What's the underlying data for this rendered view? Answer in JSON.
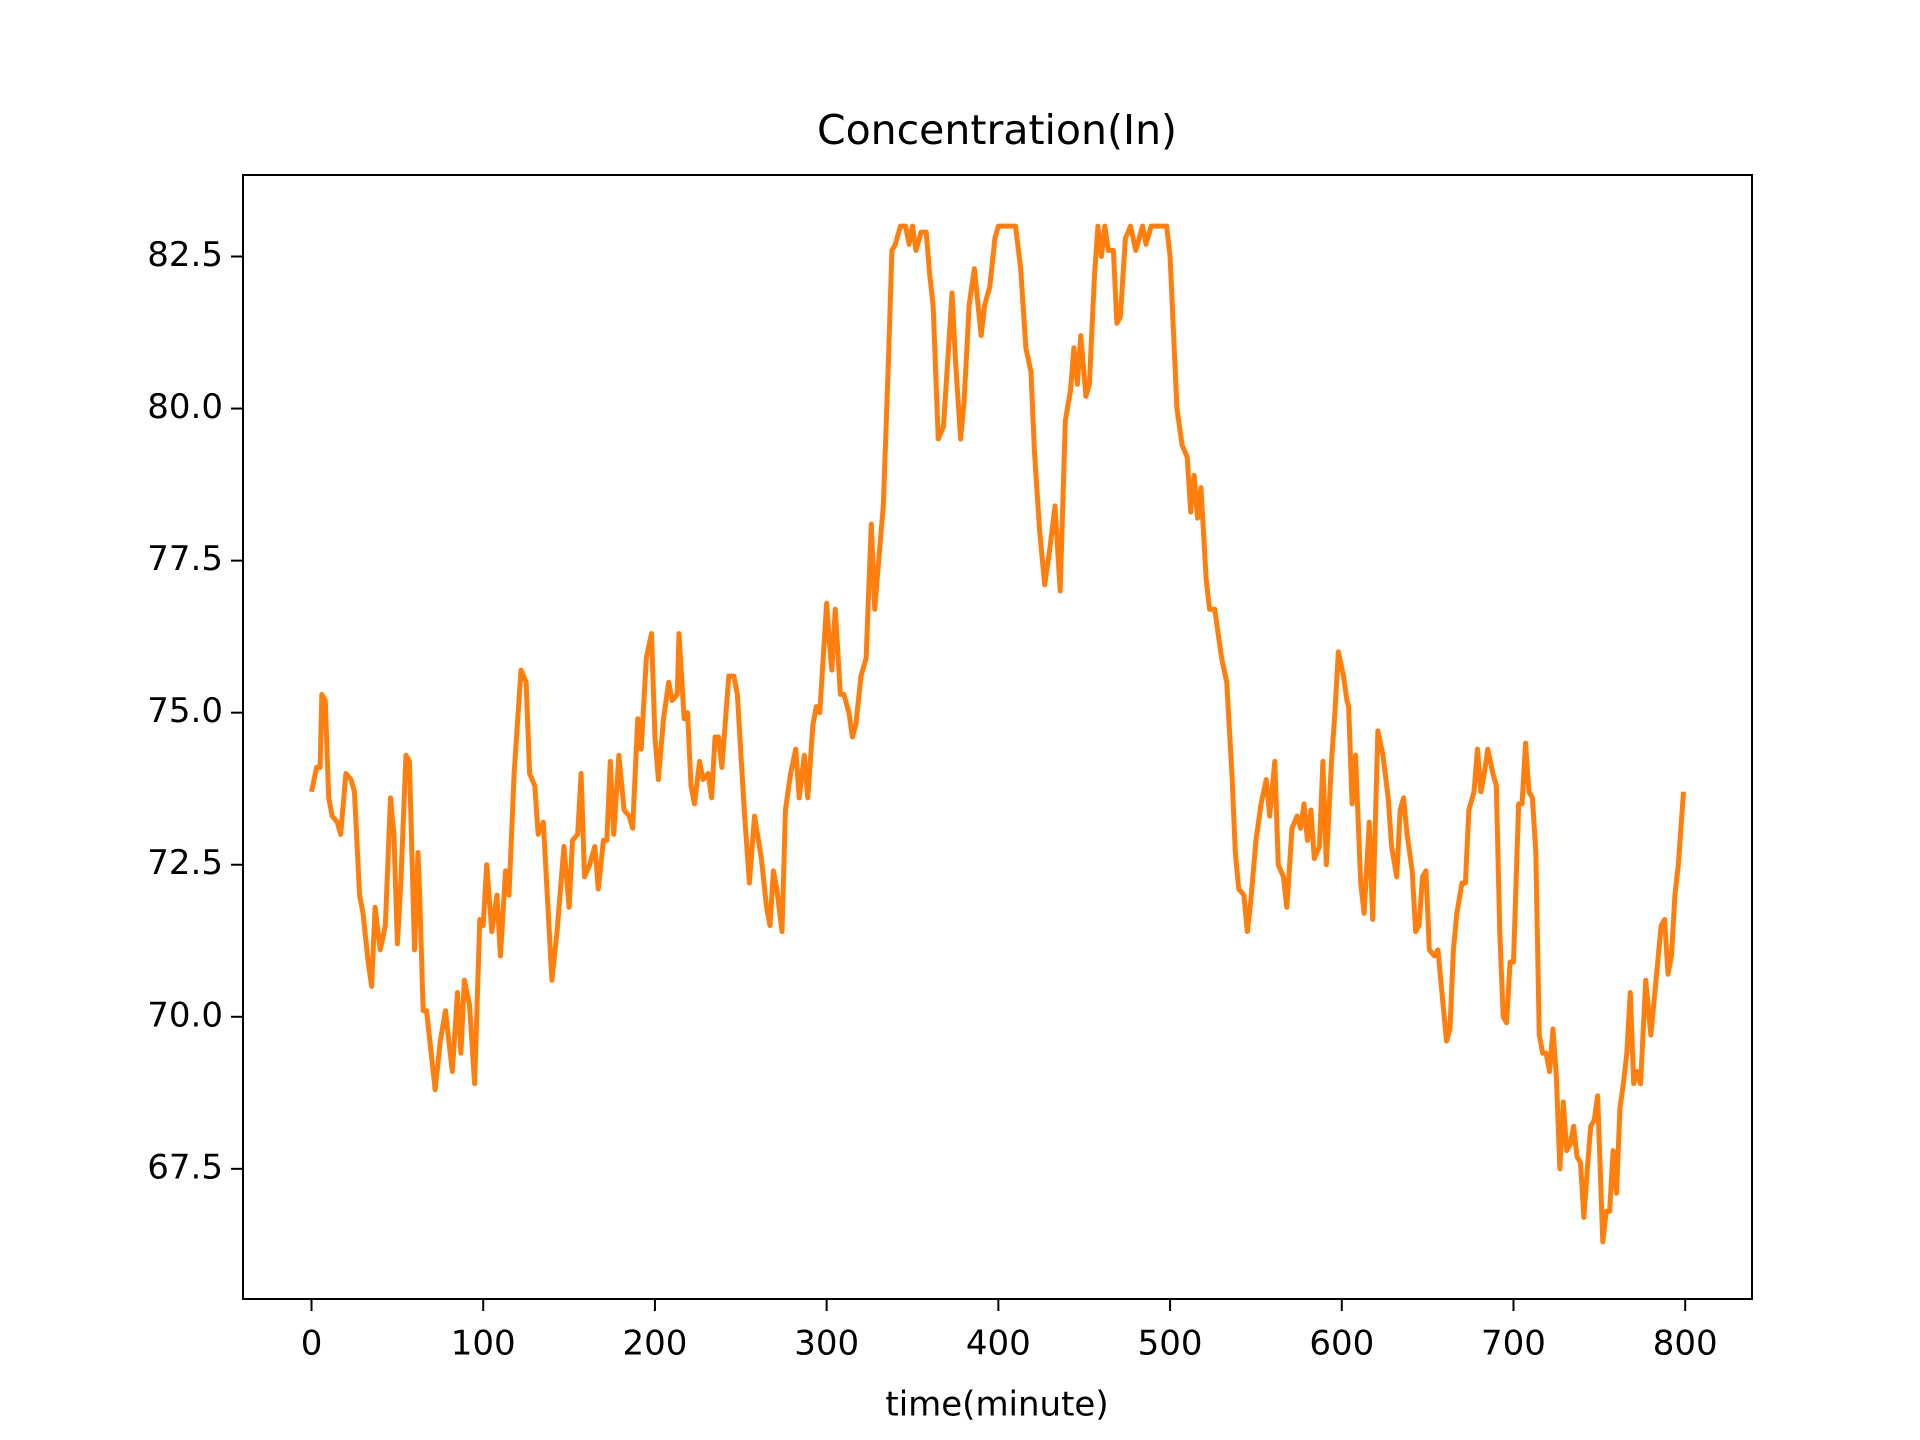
{
  "chart_data": {
    "type": "line",
    "title": "Concentration(In)",
    "x_label": "time(minute)",
    "color": "#ff7f0e",
    "x": [
      0,
      3,
      5,
      6,
      8,
      10,
      12,
      15,
      17,
      20,
      23,
      25,
      28,
      30,
      33,
      35,
      37,
      40,
      43,
      46,
      48,
      50,
      52,
      55,
      57,
      60,
      62,
      63,
      65,
      67,
      72,
      75,
      78,
      80,
      82,
      85,
      87,
      89,
      92,
      95,
      98,
      100,
      102,
      105,
      108,
      110,
      113,
      115,
      118,
      122,
      125,
      127,
      130,
      132,
      135,
      140,
      143,
      147,
      150,
      152,
      155,
      157,
      159,
      162,
      165,
      167,
      170,
      172,
      174,
      176,
      179,
      182,
      185,
      187,
      190,
      192,
      195,
      198,
      200,
      202,
      205,
      208,
      210,
      213,
      214,
      217,
      219,
      221,
      223,
      226,
      228,
      231,
      233,
      235,
      237,
      239,
      243,
      246,
      248,
      252,
      255,
      258,
      262,
      265,
      267,
      269,
      271,
      274,
      276,
      279,
      282,
      284,
      287,
      289,
      292,
      294,
      296,
      300,
      302,
      303,
      305,
      308,
      310,
      313,
      315,
      317,
      320,
      323,
      326,
      328,
      330,
      333,
      336,
      338,
      340,
      343,
      346,
      348,
      350,
      352,
      355,
      358,
      360,
      362,
      365,
      368,
      371,
      373,
      375,
      378,
      380,
      383,
      386,
      390,
      392,
      395,
      398,
      400,
      403,
      405,
      410,
      413,
      416,
      419,
      421,
      424,
      427,
      430,
      433,
      436,
      439,
      442,
      444,
      446,
      448,
      451,
      453,
      456,
      458,
      460,
      462,
      464,
      467,
      469,
      471,
      474,
      477,
      480,
      482,
      484,
      486,
      489,
      492,
      498,
      500,
      504,
      507,
      510,
      512,
      514,
      516,
      518,
      521,
      523,
      526,
      530,
      533,
      536,
      538,
      540,
      543,
      545,
      547,
      550,
      553,
      556,
      558,
      561,
      563,
      566,
      568,
      571,
      574,
      576,
      578,
      580,
      582,
      584,
      587,
      589,
      591,
      594,
      596,
      598,
      601,
      603,
      604,
      606,
      608,
      611,
      613,
      616,
      618,
      621,
      624,
      627,
      629,
      632,
      634,
      636,
      638,
      641,
      643,
      645,
      647,
      649,
      651,
      654,
      656,
      659,
      661,
      663,
      665,
      667,
      670,
      672,
      674,
      677,
      679,
      681,
      683,
      685,
      688,
      690,
      692,
      694,
      696,
      698,
      700,
      703,
      705,
      707,
      709,
      711,
      713,
      715,
      717,
      719,
      721,
      723,
      725,
      727,
      729,
      731,
      733,
      735,
      737,
      739,
      741,
      743,
      745,
      747,
      749,
      752,
      754,
      756,
      758,
      760,
      762,
      764,
      766,
      768,
      770,
      772,
      774,
      777,
      780,
      782,
      784,
      786,
      788,
      790,
      792,
      794,
      796,
      799
    ],
    "values": [
      73.7,
      74.1,
      74.1,
      75.3,
      75.2,
      73.6,
      73.3,
      73.2,
      73.0,
      74.0,
      73.9,
      73.7,
      72.0,
      71.7,
      70.9,
      70.5,
      71.8,
      71.1,
      71.5,
      73.6,
      73.0,
      71.2,
      72.2,
      74.3,
      74.2,
      71.1,
      72.7,
      72.0,
      70.1,
      70.1,
      68.8,
      69.6,
      70.1,
      69.6,
      69.1,
      70.4,
      69.4,
      70.6,
      70.2,
      68.9,
      71.6,
      71.5,
      72.5,
      71.4,
      72.0,
      71.0,
      72.4,
      72.0,
      74.0,
      75.7,
      75.5,
      74.0,
      73.8,
      73.0,
      73.2,
      70.6,
      71.4,
      72.8,
      71.8,
      72.9,
      73.0,
      74.0,
      72.3,
      72.5,
      72.8,
      72.1,
      72.9,
      72.9,
      74.2,
      73.0,
      74.3,
      73.4,
      73.3,
      73.1,
      74.9,
      74.4,
      75.9,
      76.3,
      74.6,
      73.9,
      74.9,
      75.5,
      75.2,
      75.3,
      76.3,
      74.9,
      75.0,
      73.8,
      73.5,
      74.2,
      73.9,
      74.0,
      73.6,
      74.6,
      74.6,
      74.1,
      75.6,
      75.6,
      75.3,
      73.4,
      72.2,
      73.3,
      72.6,
      71.8,
      71.5,
      72.4,
      72.1,
      71.4,
      73.4,
      74.0,
      74.4,
      73.6,
      74.3,
      73.6,
      74.8,
      75.1,
      75.0,
      76.8,
      76.0,
      75.7,
      76.7,
      75.3,
      75.3,
      75.0,
      74.6,
      74.8,
      75.6,
      75.9,
      78.1,
      76.7,
      77.4,
      78.4,
      80.8,
      82.6,
      82.7,
      83.0,
      83.0,
      82.7,
      83.0,
      82.6,
      82.9,
      82.9,
      82.2,
      81.7,
      79.5,
      79.7,
      81.0,
      81.9,
      80.8,
      79.5,
      80.1,
      81.7,
      82.3,
      81.2,
      81.7,
      82.0,
      82.8,
      83.0,
      83.0,
      83.0,
      83.0,
      82.3,
      81.0,
      80.6,
      79.3,
      78.0,
      77.1,
      77.7,
      78.4,
      77.0,
      79.8,
      80.3,
      81.0,
      80.4,
      81.2,
      80.2,
      80.4,
      82.2,
      83.0,
      82.5,
      83.0,
      82.6,
      82.6,
      81.4,
      81.5,
      82.8,
      83.0,
      82.6,
      82.8,
      83.0,
      82.7,
      83.0,
      83.0,
      83.0,
      82.5,
      80.0,
      79.4,
      79.2,
      78.3,
      78.9,
      78.2,
      78.7,
      77.2,
      76.7,
      76.7,
      75.9,
      75.5,
      74.0,
      72.7,
      72.1,
      72.0,
      71.4,
      71.9,
      72.9,
      73.5,
      73.9,
      73.3,
      74.2,
      72.5,
      72.3,
      71.8,
      73.1,
      73.3,
      73.1,
      73.5,
      72.9,
      73.4,
      72.6,
      72.8,
      74.2,
      72.5,
      74.2,
      75.0,
      76.0,
      75.6,
      75.2,
      75.1,
      73.5,
      74.3,
      72.2,
      71.7,
      73.2,
      71.6,
      74.7,
      74.3,
      73.6,
      72.8,
      72.3,
      73.4,
      73.6,
      73.0,
      72.4,
      71.4,
      71.5,
      72.3,
      72.4,
      71.1,
      71.0,
      71.1,
      70.2,
      69.6,
      69.8,
      71.1,
      71.7,
      72.2,
      72.2,
      73.4,
      73.7,
      74.4,
      73.7,
      74.0,
      74.4,
      74.0,
      73.8,
      71.4,
      70.0,
      69.9,
      70.9,
      70.9,
      73.5,
      73.5,
      74.5,
      73.7,
      73.6,
      72.7,
      69.7,
      69.4,
      69.4,
      69.1,
      69.8,
      69.0,
      67.5,
      68.6,
      67.8,
      67.9,
      68.2,
      67.7,
      67.6,
      66.7,
      67.5,
      68.2,
      68.3,
      68.7,
      66.3,
      66.8,
      66.8,
      67.8,
      67.1,
      68.5,
      68.9,
      69.4,
      70.4,
      68.9,
      69.1,
      68.9,
      70.6,
      69.7,
      70.3,
      70.9,
      71.5,
      71.6,
      70.7,
      71.0,
      72.0,
      72.5,
      73.7
    ],
    "xlim": [
      -39.9,
      838.9
    ],
    "ylim": [
      65.36,
      83.84
    ],
    "xticks": [
      0,
      100,
      200,
      300,
      400,
      500,
      600,
      700,
      800
    ],
    "yticks": [
      67.5,
      {
        "value": 70,
        "label": "70.0"
      },
      72.5,
      {
        "value": 75,
        "label": "75.0"
      },
      77.5,
      {
        "value": 80,
        "label": "80.0"
      },
      82.5
    ]
  }
}
